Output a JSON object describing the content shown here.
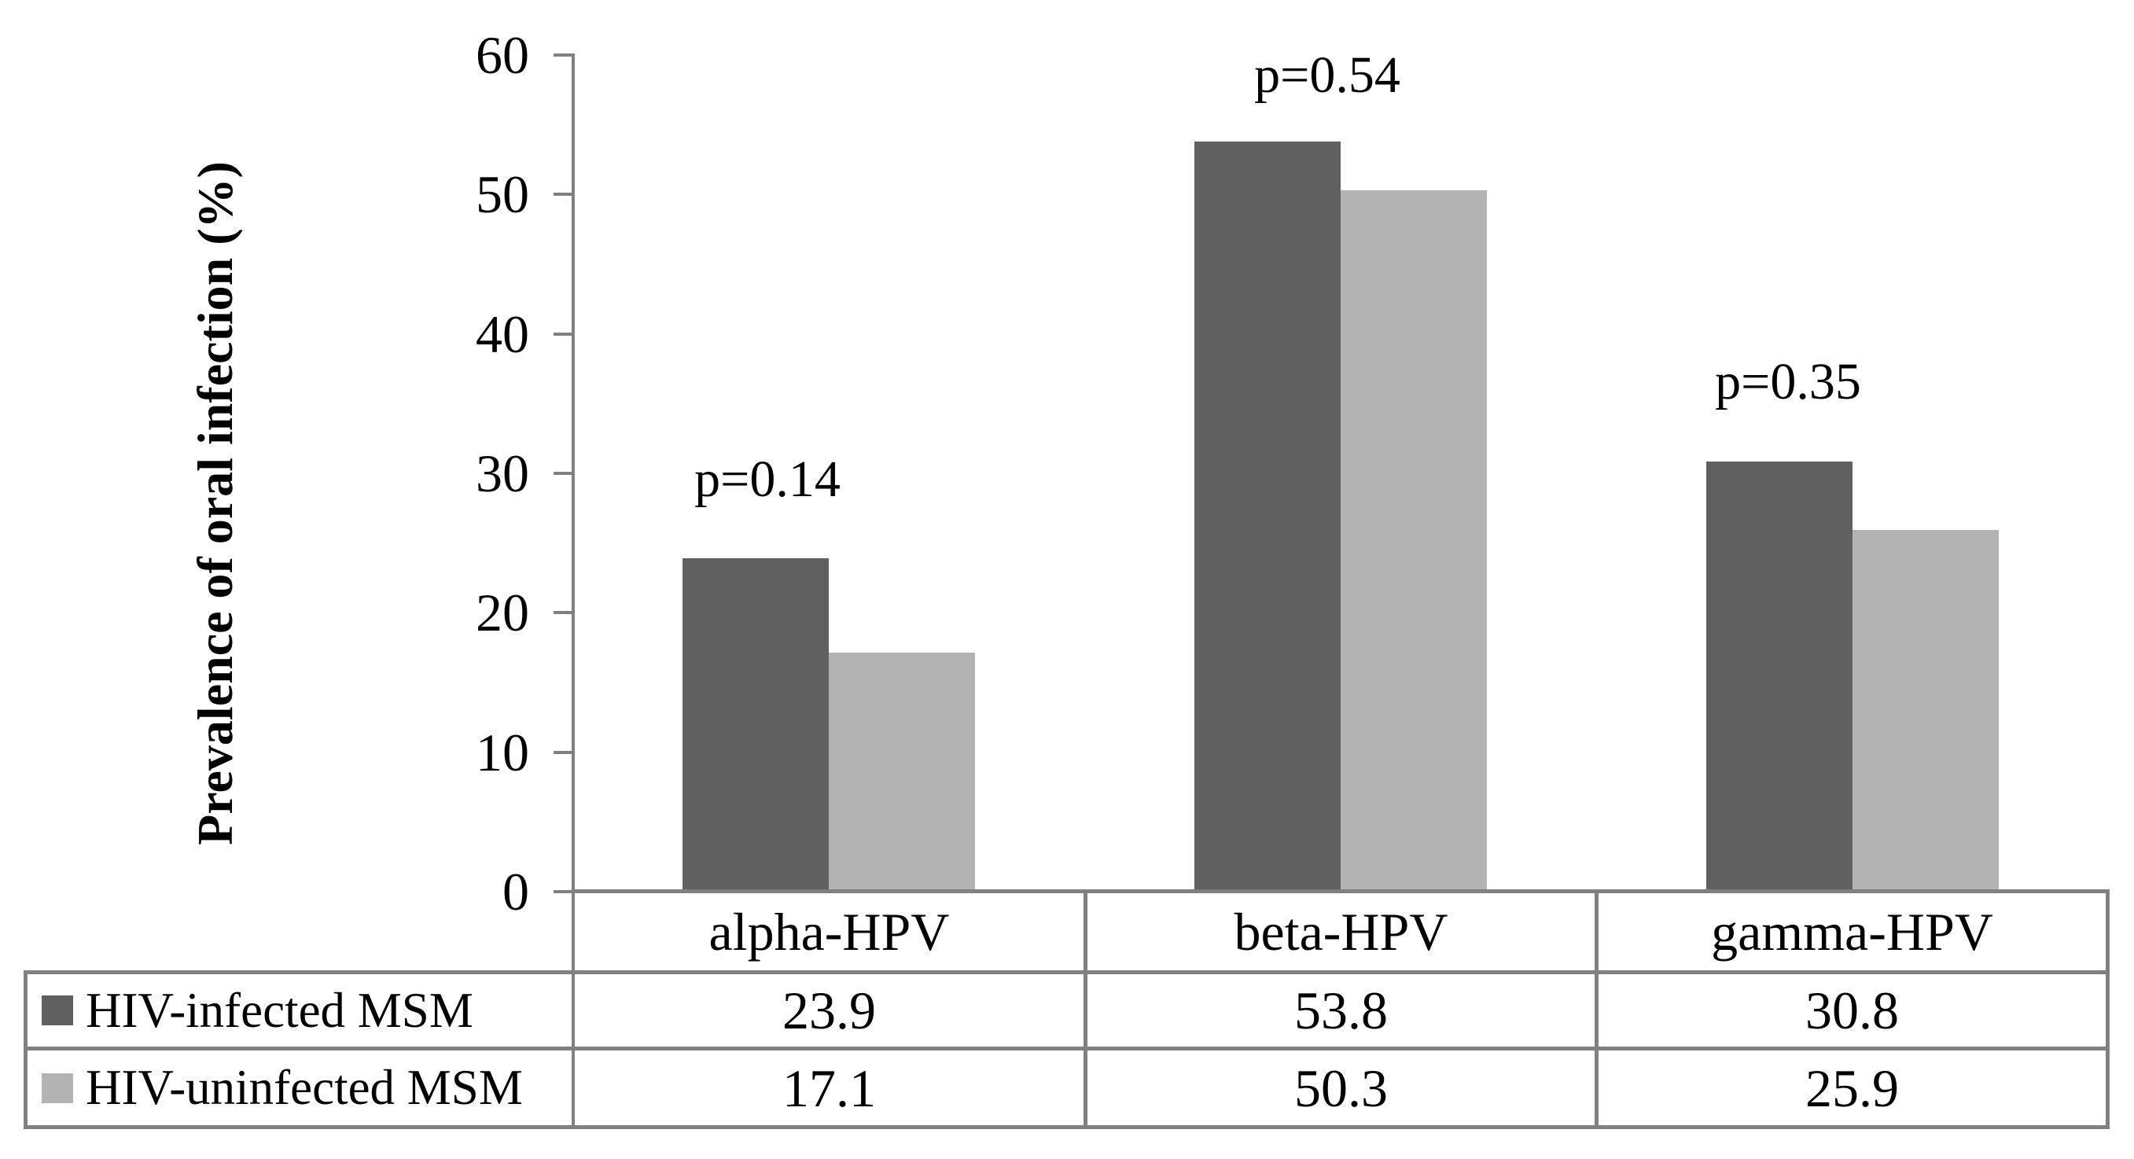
{
  "chart_data": {
    "type": "bar",
    "title": "",
    "ylabel": "Prevalence of oral infection (%)",
    "xlabel": "",
    "ylim": [
      0,
      60
    ],
    "y_ticks": [
      60,
      50,
      40,
      30,
      20,
      10,
      0
    ],
    "grid": false,
    "legend_position": "data-table-left-column",
    "categories": [
      "alpha-HPV",
      "beta-HPV",
      "gamma-HPV"
    ],
    "series": [
      {
        "name": "HIV-infected MSM",
        "color": "#606060",
        "values": [
          23.9,
          53.8,
          30.8
        ]
      },
      {
        "name": "HIV-uninfected MSM",
        "color": "#b3b3b3",
        "values": [
          17.1,
          50.3,
          25.9
        ]
      }
    ],
    "annotations": [
      {
        "label": "p=0.14",
        "category": "alpha-HPV"
      },
      {
        "label": "p=0.54",
        "category": "beta-HPV"
      },
      {
        "label": "p=0.35",
        "category": "gamma-HPV"
      }
    ],
    "colors": {
      "axis_and_borders": "#808080",
      "background": "#ffffff",
      "text": "#000000"
    }
  }
}
